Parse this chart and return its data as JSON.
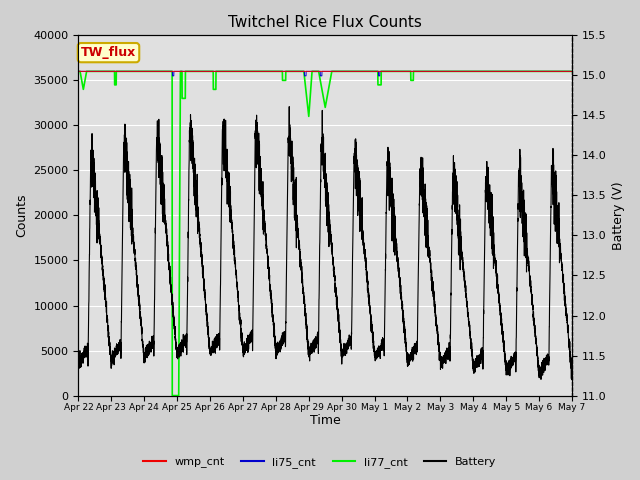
{
  "title": "Twitchel Rice Flux Counts",
  "xlabel": "Time",
  "ylabel_left": "Counts",
  "ylabel_right": "Battery (V)",
  "ylim_left": [
    0,
    40000
  ],
  "ylim_right": [
    11.0,
    15.5
  ],
  "yticks_left": [
    0,
    5000,
    10000,
    15000,
    20000,
    25000,
    30000,
    35000,
    40000
  ],
  "yticks_right": [
    11.0,
    11.5,
    12.0,
    12.5,
    13.0,
    13.5,
    14.0,
    14.5,
    15.0,
    15.5
  ],
  "xtick_labels": [
    "Apr 22",
    "Apr 23",
    "Apr 24",
    "Apr 25",
    "Apr 26",
    "Apr 27",
    "Apr 28",
    "Apr 29",
    "Apr 30",
    "May 1",
    "May 2",
    "May 3",
    "May 4",
    "May 5",
    "May 6",
    "May 7"
  ],
  "fig_bg": "#d0d0d0",
  "plot_bg": "#e0e0e0",
  "grid_color": "#ffffff",
  "annotation_box": {
    "text": "TW_flux",
    "facecolor": "#ffffcc",
    "edgecolor": "#ccaa00",
    "textcolor": "#cc0000",
    "fontsize": 9,
    "fontweight": "bold"
  },
  "li77_cnt_color": "#00ee00",
  "li75_cnt_color": "#0000cc",
  "wmp_cnt_color": "#ee0000",
  "battery_color": "#000000",
  "legend_entries": [
    "wmp_cnt",
    "li75_cnt",
    "li77_cnt",
    "Battery"
  ],
  "legend_colors": [
    "#ee0000",
    "#0000cc",
    "#00ee00",
    "#000000"
  ]
}
